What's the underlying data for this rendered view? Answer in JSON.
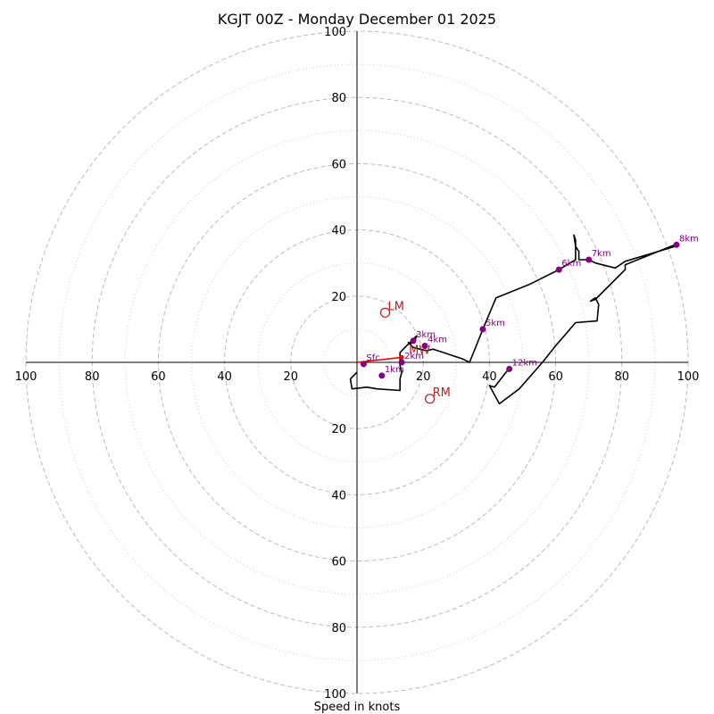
{
  "chart_data": {
    "type": "hodograph",
    "title": "KGJT 00Z - Monday December 01 2025",
    "xlabel": "Speed in knots",
    "ring_range": [
      0,
      100
    ],
    "major_rings": [
      20,
      40,
      60,
      80,
      100
    ],
    "minor_rings": [
      10,
      30,
      50,
      70,
      90
    ],
    "axis_ticks": [
      "20",
      "40",
      "60",
      "80",
      "100"
    ],
    "colors": {
      "trace": "#000000",
      "height_marker": "#800080",
      "storm_motion": "#b22222",
      "mean_wind_vector": "#ff0000",
      "major_ring": "#bbbbbb",
      "minor_ring": "#cccccc"
    },
    "trace": [
      [
        0,
        -3
      ],
      [
        -2,
        -5
      ],
      [
        -1.5,
        -8
      ],
      [
        3,
        -7.5
      ],
      [
        6,
        -8
      ],
      [
        13,
        -8.5
      ],
      [
        13,
        -7
      ],
      [
        13,
        -5
      ],
      [
        13.5,
        -3
      ],
      [
        13,
        -1
      ],
      [
        13,
        1
      ],
      [
        13,
        3
      ],
      [
        14,
        4
      ],
      [
        15,
        5
      ],
      [
        16,
        6
      ],
      [
        17,
        7
      ],
      [
        18,
        8
      ],
      [
        17.5,
        6.5
      ],
      [
        16,
        5.5
      ],
      [
        15.5,
        6
      ],
      [
        17,
        4.5
      ],
      [
        19,
        4
      ],
      [
        21,
        3.5
      ],
      [
        23,
        4
      ],
      [
        26,
        3
      ],
      [
        29,
        2
      ],
      [
        32,
        1
      ],
      [
        34,
        0
      ],
      [
        36,
        5
      ],
      [
        38,
        10
      ],
      [
        42,
        19.5
      ],
      [
        52,
        23.5
      ],
      [
        61,
        28
      ],
      [
        66,
        31
      ],
      [
        66,
        37
      ],
      [
        65.5,
        38.5
      ],
      [
        66,
        35
      ],
      [
        67,
        33.5
      ],
      [
        67,
        31
      ],
      [
        70,
        31
      ],
      [
        72,
        30
      ],
      [
        78,
        28.5
      ],
      [
        81,
        30.5
      ],
      [
        96,
        35
      ],
      [
        96,
        35.5
      ],
      [
        81,
        29.5
      ],
      [
        81,
        28
      ],
      [
        72,
        19
      ],
      [
        70.5,
        18.5
      ],
      [
        72,
        19.5
      ],
      [
        73,
        17.5
      ],
      [
        72.5,
        12.5
      ],
      [
        66,
        12
      ],
      [
        60,
        5
      ],
      [
        56,
        0
      ],
      [
        49,
        -8
      ],
      [
        43,
        -12.5
      ],
      [
        40,
        -7
      ],
      [
        41.5,
        -7.5
      ],
      [
        45,
        -3
      ],
      [
        46,
        -2
      ]
    ],
    "height_markers": [
      {
        "label": "Sfc",
        "u": 2,
        "v": -0.5
      },
      {
        "label": "1km",
        "u": 7.5,
        "v": -4
      },
      {
        "label": "2km",
        "u": 13.5,
        "v": 0
      },
      {
        "label": "3km",
        "u": 17,
        "v": 6.5
      },
      {
        "label": "4km",
        "u": 20.5,
        "v": 5
      },
      {
        "label": "5km",
        "u": 38,
        "v": 10
      },
      {
        "label": "6km",
        "u": 61,
        "v": 28
      },
      {
        "label": "7km",
        "u": 70,
        "v": 31
      },
      {
        "label": "8km",
        "u": 96.5,
        "v": 35.5
      },
      {
        "label": "12km",
        "u": 46,
        "v": -2
      }
    ],
    "storm_motions": [
      {
        "label": "LM",
        "u": 8.5,
        "v": 15
      },
      {
        "label": "RM",
        "u": 22,
        "v": -11
      }
    ],
    "mean_wind": {
      "label": "MW",
      "u": 13.5,
      "v": 1.5,
      "from": [
        0,
        0
      ]
    }
  }
}
